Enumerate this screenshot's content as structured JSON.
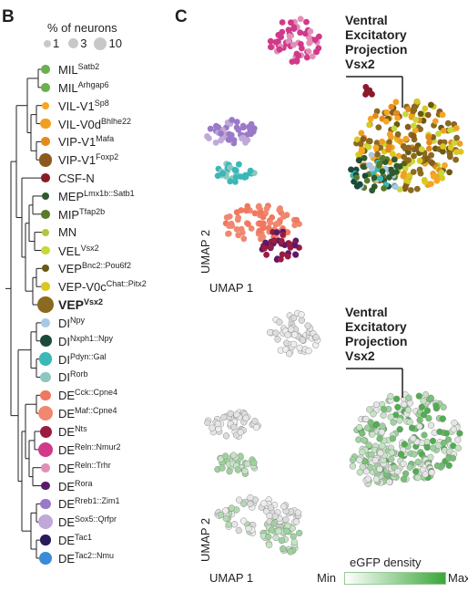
{
  "panel_b": {
    "letter": "B",
    "size_legend": {
      "title": "% of neurons",
      "items": [
        "1",
        "3",
        "10"
      ]
    },
    "leaves": [
      {
        "base": "MIL",
        "sup": "Satb2",
        "color": "#6ab04c",
        "size": 3
      },
      {
        "base": "MIL",
        "sup": "Arhgap6",
        "color": "#6ab04c",
        "size": 3
      },
      {
        "base": "VIL-V1",
        "sup": "Sp8",
        "color": "#f5a623",
        "size": 2
      },
      {
        "base": "VIL-V0d",
        "sup": "Bhlhe22",
        "color": "#f0a020",
        "size": 4
      },
      {
        "base": "VIP-V1",
        "sup": "Mafa",
        "color": "#e48a1c",
        "size": 3
      },
      {
        "base": "VIP-V1",
        "sup": "Foxp2",
        "color": "#8b5a1e",
        "size": 6
      },
      {
        "base": "CSF-N",
        "sup": "",
        "color": "#8b1a2a",
        "size": 3
      },
      {
        "base": "MEP",
        "sup": "Lmx1b::Satb1",
        "color": "#2e5a2e",
        "size": 2
      },
      {
        "base": "MIP",
        "sup": "Tfap2b",
        "color": "#5a7a2a",
        "size": 3
      },
      {
        "base": "MN",
        "sup": "",
        "color": "#b5c43a",
        "size": 2
      },
      {
        "base": "VEL",
        "sup": "Vsx2",
        "color": "#c8d83a",
        "size": 3
      },
      {
        "base": "VEP",
        "sup": "Bnc2::Pou6f2",
        "color": "#6a5a10",
        "size": 2
      },
      {
        "base": "VEP-V0c",
        "sup": "Chat::Pitx2",
        "color": "#d8c820",
        "size": 3
      },
      {
        "base": "VEP",
        "sup": "Vsx2",
        "color": "#8a6a20",
        "size": 8,
        "bold": true
      },
      {
        "base": "DI",
        "sup": "Npy",
        "color": "#a8c8e8",
        "size": 3
      },
      {
        "base": "DI",
        "sup": "Nxph1::Npy",
        "color": "#1a4a3a",
        "size": 5
      },
      {
        "base": "DI",
        "sup": "Pdyn::Gal",
        "color": "#3ab8b8",
        "size": 6
      },
      {
        "base": "DI",
        "sup": "Rorb",
        "color": "#8ac8c0",
        "size": 4
      },
      {
        "base": "DE",
        "sup": "Cck::Cpne4",
        "color": "#f07860",
        "size": 4
      },
      {
        "base": "DE",
        "sup": "Maf::Cpne4",
        "color": "#f08870",
        "size": 7
      },
      {
        "base": "DE",
        "sup": "Nts",
        "color": "#9a1a40",
        "size": 5
      },
      {
        "base": "DE",
        "sup": "Reln::Nmur2",
        "color": "#d03a8a",
        "size": 7
      },
      {
        "base": "DE",
        "sup": "Reln::Trhr",
        "color": "#e090b8",
        "size": 3
      },
      {
        "base": "DE",
        "sup": "Rora",
        "color": "#5a1a6a",
        "size": 3
      },
      {
        "base": "DE",
        "sup": "Rreb1::Zim1",
        "color": "#9a7ac8",
        "size": 4
      },
      {
        "base": "DE",
        "sup": "Sox5::Qrfpr",
        "color": "#c0a8d8",
        "size": 7
      },
      {
        "base": "DE",
        "sup": "Tac1",
        "color": "#2a1a5a",
        "size": 4
      },
      {
        "base": "DE",
        "sup": "Tac2::Nmu",
        "color": "#3a8ad8",
        "size": 6
      }
    ]
  },
  "panel_c": {
    "letter": "C",
    "annotation": [
      "Ventral",
      "Excitatory",
      "Projection",
      "Vsx2"
    ],
    "axis_y": "UMAP 2",
    "axis_x": "UMAP 1",
    "egfp_legend": {
      "title": "eGFP density",
      "min": "Min",
      "max": "Max"
    }
  }
}
